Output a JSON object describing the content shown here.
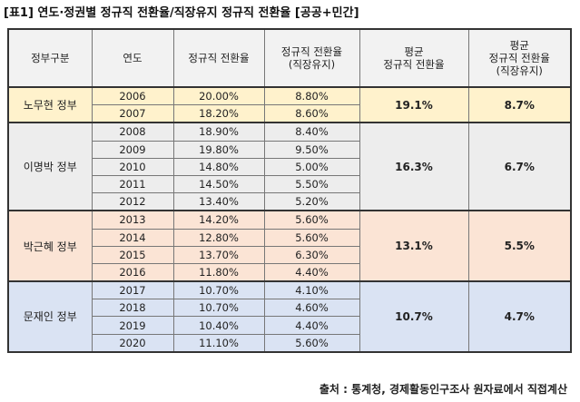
{
  "title": "[표1] 연도·정권별 정규직 전환율/직장유지 정규직 전환율 [공공+민간]",
  "table": {
    "header": [
      "정부구분",
      "연도",
      "정규직 전환율",
      "정규직 전환율\n(직장유지)",
      "평균\n정규직 전환율",
      "평균\n정규직 전환율\n(직장유지)"
    ],
    "groups": [
      {
        "name": "노무현 정부",
        "rows": [
          [
            "2006",
            "20.00%",
            "8.80%"
          ],
          [
            "2007",
            "18.20%",
            "8.60%"
          ]
        ],
        "avg": "19.1%",
        "avg_retained": "8.7%"
      },
      {
        "name": "이명박 정부",
        "rows": [
          [
            "2008",
            "18.90%",
            "8.40%"
          ],
          [
            "2009",
            "19.80%",
            "9.50%"
          ],
          [
            "2010",
            "14.80%",
            "5.00%"
          ],
          [
            "2011",
            "14.50%",
            "5.50%"
          ],
          [
            "2012",
            "13.40%",
            "5.20%"
          ]
        ],
        "avg": "16.3%",
        "avg_retained": "6.7%"
      },
      {
        "name": "박근혜 정부",
        "rows": [
          [
            "2013",
            "14.20%",
            "5.60%"
          ],
          [
            "2014",
            "12.80%",
            "5.60%"
          ],
          [
            "2015",
            "13.70%",
            "6.30%"
          ],
          [
            "2016",
            "11.80%",
            "4.40%"
          ]
        ],
        "avg": "13.1%",
        "avg_retained": "5.5%"
      },
      {
        "name": "문재인 정부",
        "rows": [
          [
            "2017",
            "10.70%",
            "4.10%"
          ],
          [
            "2018",
            "10.70%",
            "4.60%"
          ],
          [
            "2019",
            "10.40%",
            "4.40%"
          ],
          [
            "2020",
            "11.10%",
            "5.60%"
          ]
        ],
        "avg": "10.7%",
        "avg_retained": "4.7%"
      }
    ]
  },
  "source": "출처 : 통계청, 경제활동인구조사 원자료에서 직접계산"
}
